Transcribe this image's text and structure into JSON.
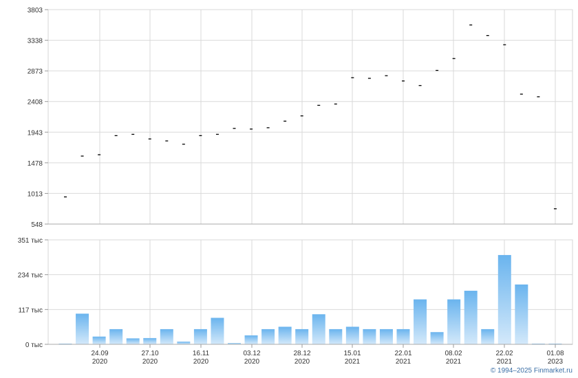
{
  "chart_data": [
    {
      "type": "scatter",
      "marker": "dash",
      "marker_color": "#000000",
      "y_ticks": [
        "3803",
        "3338",
        "2873",
        "2408",
        "1943",
        "1478",
        "1013",
        "548"
      ],
      "ylim": [
        548,
        3803
      ],
      "grid": true,
      "points": [
        {
          "i": 0,
          "y": 960
        },
        {
          "i": 1,
          "y": 1580
        },
        {
          "i": 2,
          "y": 1600
        },
        {
          "i": 3,
          "y": 1890
        },
        {
          "i": 4,
          "y": 1910
        },
        {
          "i": 5,
          "y": 1840
        },
        {
          "i": 6,
          "y": 1810
        },
        {
          "i": 7,
          "y": 1760
        },
        {
          "i": 8,
          "y": 1890
        },
        {
          "i": 9,
          "y": 1910
        },
        {
          "i": 10,
          "y": 2000
        },
        {
          "i": 11,
          "y": 1990
        },
        {
          "i": 12,
          "y": 2010
        },
        {
          "i": 13,
          "y": 2110
        },
        {
          "i": 14,
          "y": 2190
        },
        {
          "i": 15,
          "y": 2350
        },
        {
          "i": 16,
          "y": 2370
        },
        {
          "i": 17,
          "y": 2770
        },
        {
          "i": 18,
          "y": 2760
        },
        {
          "i": 19,
          "y": 2800
        },
        {
          "i": 20,
          "y": 2720
        },
        {
          "i": 21,
          "y": 2650
        },
        {
          "i": 22,
          "y": 2880
        },
        {
          "i": 23,
          "y": 3060
        },
        {
          "i": 24,
          "y": 3570
        },
        {
          "i": 25,
          "y": 3410
        },
        {
          "i": 26,
          "y": 3270
        },
        {
          "i": 27,
          "y": 2520
        },
        {
          "i": 28,
          "y": 2480
        },
        {
          "i": 29,
          "y": 780
        }
      ]
    },
    {
      "type": "bar",
      "bar_color_top": "#6ab4ee",
      "bar_color_bottom": "#d4e9fa",
      "y_ticks": [
        "351 тыс",
        "234 тыс",
        "117 тыс",
        "0 тыс"
      ],
      "ylim": [
        0,
        351000
      ],
      "grid": true,
      "values": [
        2000,
        103000,
        26000,
        51000,
        20000,
        21000,
        51000,
        9000,
        51000,
        89000,
        4000,
        30000,
        51000,
        59000,
        51000,
        101000,
        51000,
        59000,
        51000,
        51000,
        51000,
        151000,
        41000,
        151000,
        180000,
        51000,
        300000,
        201000,
        2000,
        2000
      ],
      "x_ticks": [
        {
          "i": 2,
          "line1": "24.09",
          "line2": "2020"
        },
        {
          "i": 5,
          "line1": "27.10",
          "line2": "2020"
        },
        {
          "i": 8,
          "line1": "16.11",
          "line2": "2020"
        },
        {
          "i": 11,
          "line1": "03.12",
          "line2": "2020"
        },
        {
          "i": 14,
          "line1": "28.12",
          "line2": "2020"
        },
        {
          "i": 17,
          "line1": "15.01",
          "line2": "2021"
        },
        {
          "i": 20,
          "line1": "22.01",
          "line2": "2021"
        },
        {
          "i": 23,
          "line1": "08.02",
          "line2": "2021"
        },
        {
          "i": 26,
          "line1": "22.02",
          "line2": "2021"
        },
        {
          "i": 29,
          "line1": "01.08",
          "line2": "2023"
        }
      ]
    }
  ],
  "credit": "© 1994–2025 Finmarket.ru"
}
